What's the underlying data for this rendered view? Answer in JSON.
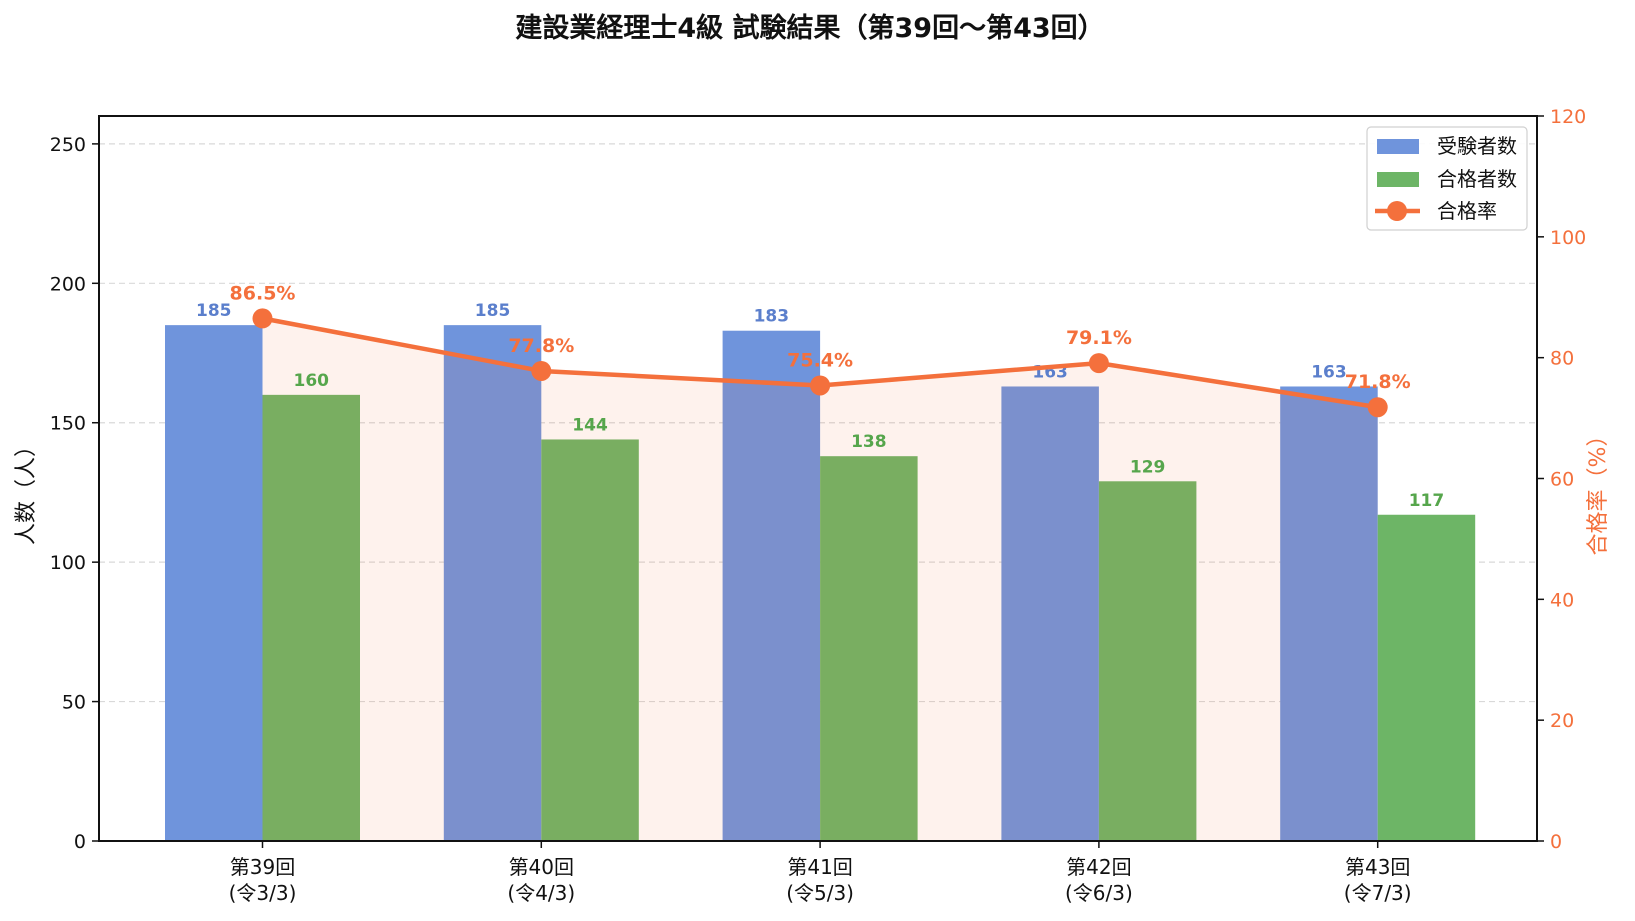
{
  "chart_data": {
    "type": "bar",
    "title": "建設業経理士4級 試験結果（第39回〜第43回）",
    "categories": [
      "第39回\n(令3/3)",
      "第40回\n(令4/3)",
      "第41回\n(令5/3)",
      "第42回\n(令6/3)",
      "第43回\n(令7/3)"
    ],
    "category_lines": [
      [
        "第39回",
        "(令3/3)"
      ],
      [
        "第40回",
        "(令4/3)"
      ],
      [
        "第41回",
        "(令5/3)"
      ],
      [
        "第42回",
        "(令6/3)"
      ],
      [
        "第43回",
        "(令7/3)"
      ]
    ],
    "series": [
      {
        "name": "受験者数",
        "type": "bar",
        "axis": "left",
        "color": "#6f94dc",
        "values": [
          185,
          185,
          183,
          163,
          163
        ]
      },
      {
        "name": "合格者数",
        "type": "bar",
        "axis": "left",
        "color": "#6db566",
        "values": [
          160,
          144,
          138,
          129,
          117
        ]
      },
      {
        "name": "合格率",
        "type": "line",
        "axis": "right",
        "color": "#f4703c",
        "values": [
          86.5,
          77.8,
          75.4,
          79.1,
          71.8
        ],
        "labels": [
          "86.5%",
          "77.8%",
          "75.4%",
          "79.1%",
          "71.8%"
        ],
        "area_fill": "#fdf1ec"
      }
    ],
    "xlabel": "",
    "ylabel": "人数（人）",
    "y2label": "合格率（%）",
    "ylim": [
      0,
      260
    ],
    "y2lim": [
      0,
      120
    ],
    "yticks": [
      0,
      50,
      100,
      150,
      200,
      250
    ],
    "y2ticks": [
      0,
      20,
      40,
      60,
      80,
      100,
      120
    ],
    "grid": "horizontal dashed",
    "legend_position": "upper right"
  }
}
